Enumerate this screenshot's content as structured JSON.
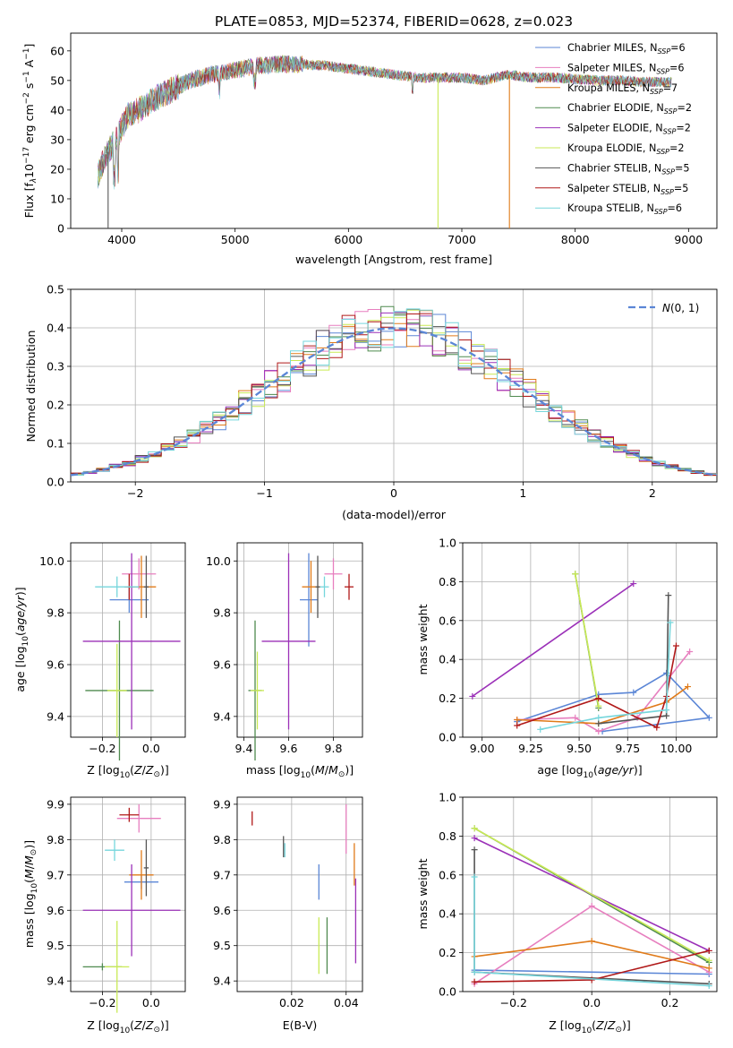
{
  "figure": {
    "title": "PLATE=0853, MJD=52374, FIBERID=0628, z=0.023",
    "colors": {
      "chabrier_miles": "#5b86d6",
      "salpeter_miles": "#e77fbf",
      "kroupa_miles": "#e07b1a",
      "chabrier_elodie": "#4f8a4f",
      "salpeter_elodie": "#9b30b8",
      "kroupa_elodie": "#c9ea55",
      "chabrier_stelib": "#555555",
      "salpeter_stelib": "#b01818",
      "kroupa_stelib": "#76d6dc"
    }
  },
  "chart_data": [
    {
      "id": "spectrum",
      "type": "line",
      "xlabel": "wavelength [Angstrom, rest frame]",
      "ylabel": "Flux [f_λ10^-17 erg cm^-2 s^-1 A^-1]",
      "xlim": [
        3550,
        9250
      ],
      "ylim": [
        0,
        66
      ],
      "xticks": [
        "4000",
        "5000",
        "6000",
        "7000",
        "8000",
        "9000"
      ],
      "yticks": [
        "0",
        "10",
        "20",
        "30",
        "40",
        "50",
        "60"
      ],
      "grid": false,
      "legend_position": "top-right",
      "legend": [
        {
          "label": "Chabrier MILES, N",
          "sub": "SSP",
          "suffix": "=6",
          "color_key": "chabrier_miles"
        },
        {
          "label": "Salpeter MILES, N",
          "sub": "SSP",
          "suffix": "=6",
          "color_key": "salpeter_miles"
        },
        {
          "label": "Kroupa MILES, N",
          "sub": "SSP",
          "suffix": "=7",
          "color_key": "kroupa_miles"
        },
        {
          "label": "Chabrier ELODIE, N",
          "sub": "SSP",
          "suffix": "=2",
          "color_key": "chabrier_elodie"
        },
        {
          "label": "Salpeter ELODIE, N",
          "sub": "SSP",
          "suffix": "=2",
          "color_key": "salpeter_elodie"
        },
        {
          "label": "Kroupa ELODIE, N",
          "sub": "SSP",
          "suffix": "=2",
          "color_key": "kroupa_elodie"
        },
        {
          "label": "Chabrier STELIB, N",
          "sub": "SSP",
          "suffix": "=5",
          "color_key": "chabrier_stelib"
        },
        {
          "label": "Salpeter STELIB, N",
          "sub": "SSP",
          "suffix": "=5",
          "color_key": "salpeter_stelib"
        },
        {
          "label": "Kroupa STELIB, N",
          "sub": "SSP",
          "suffix": "=6",
          "color_key": "kroupa_stelib"
        }
      ],
      "continuum": [
        [
          3790,
          18
        ],
        [
          3850,
          24
        ],
        [
          3950,
          30
        ],
        [
          4050,
          38
        ],
        [
          4150,
          40
        ],
        [
          4300,
          44
        ],
        [
          4450,
          47
        ],
        [
          4600,
          50
        ],
        [
          4800,
          52
        ],
        [
          5000,
          53.5
        ],
        [
          5200,
          55
        ],
        [
          5400,
          55.5
        ],
        [
          5600,
          55.5
        ],
        [
          5800,
          55
        ],
        [
          6000,
          54
        ],
        [
          6200,
          53
        ],
        [
          6400,
          52
        ],
        [
          6600,
          51
        ],
        [
          6800,
          51
        ],
        [
          7000,
          51
        ],
        [
          7200,
          50
        ],
        [
          7400,
          52
        ],
        [
          7600,
          51
        ],
        [
          7800,
          51
        ],
        [
          8000,
          50.5
        ],
        [
          8200,
          50
        ],
        [
          8400,
          50
        ],
        [
          8600,
          49.5
        ],
        [
          8800,
          49.5
        ]
      ],
      "dropouts": [
        {
          "x": 3880,
          "y": 0,
          "color_key": "chabrier_stelib"
        },
        {
          "x": 6790,
          "y": 0,
          "color_key": "kroupa_elodie"
        },
        {
          "x": 7420,
          "y": 0,
          "color_key": "kroupa_miles"
        }
      ]
    },
    {
      "id": "residuals",
      "type": "line",
      "xlabel": "(data-model)/error",
      "ylabel": "Normed distribution",
      "xlim": [
        -2.5,
        2.5
      ],
      "ylim": [
        0,
        0.5
      ],
      "xticks": [
        "−2",
        "−1",
        "0",
        "1",
        "2"
      ],
      "yticks": [
        "0.0",
        "0.1",
        "0.2",
        "0.3",
        "0.4",
        "0.5"
      ],
      "grid": true,
      "legend_position": "top-right",
      "legend_label": "N(0,1)",
      "bin_width": 0.1
    },
    {
      "id": "age_vs_Z",
      "type": "scatter",
      "xlabel": "Z [log10(Z/Z⊙)]",
      "ylabel": "age  [log10(age/yr)]",
      "xlim": [
        -0.33,
        0.14
      ],
      "ylim": [
        9.32,
        10.07
      ],
      "xticks": [
        "−0.2",
        "0.0"
      ],
      "yticks": [
        "9.4",
        "9.6",
        "9.8",
        "10.0"
      ],
      "grid": true,
      "points": [
        {
          "x": -0.09,
          "y": 9.85,
          "xerr": 0.08,
          "yerr": 0.05,
          "color_key": "chabrier_miles"
        },
        {
          "x": -0.05,
          "y": 9.95,
          "xerr": 0.07,
          "yerr": 0.06,
          "color_key": "salpeter_miles"
        },
        {
          "x": -0.04,
          "y": 9.9,
          "xerr": 0.06,
          "yerr": 0.12,
          "color_key": "kroupa_miles"
        },
        {
          "x": -0.13,
          "y": 9.5,
          "xerr": 0.14,
          "yerr": 0.27,
          "color_key": "chabrier_elodie"
        },
        {
          "x": -0.08,
          "y": 9.69,
          "xerr": 0.2,
          "yerr": 0.34,
          "color_key": "salpeter_elodie"
        },
        {
          "x": -0.14,
          "y": 9.5,
          "xerr": 0.04,
          "yerr": 0.18,
          "color_key": "kroupa_elodie"
        },
        {
          "x": -0.02,
          "y": 9.9,
          "xerr": 0.01,
          "yerr": 0.12,
          "color_key": "chabrier_stelib"
        },
        {
          "x": -0.09,
          "y": 9.9,
          "xerr": 0.02,
          "yerr": 0.05,
          "color_key": "salpeter_stelib"
        },
        {
          "x": -0.14,
          "y": 9.9,
          "xerr": 0.09,
          "yerr": 0.04,
          "color_key": "kroupa_stelib"
        }
      ]
    },
    {
      "id": "age_vs_mass",
      "type": "scatter",
      "xlabel": "mass [log10(M/M⊙)]",
      "ylabel": "",
      "xlim": [
        9.37,
        9.93
      ],
      "ylim": [
        9.32,
        10.07
      ],
      "xticks": [
        "9.4",
        "9.6",
        "9.8"
      ],
      "yticks": [
        "9.4",
        "9.6",
        "9.8",
        "10.0"
      ],
      "grid": true,
      "points": [
        {
          "x": 9.69,
          "y": 9.85,
          "xerr": 0.04,
          "yerr": 0.18,
          "color_key": "chabrier_miles"
        },
        {
          "x": 9.8,
          "y": 9.95,
          "xerr": 0.04,
          "yerr": 0.06,
          "color_key": "salpeter_miles"
        },
        {
          "x": 9.7,
          "y": 9.9,
          "xerr": 0.04,
          "yerr": 0.1,
          "color_key": "kroupa_miles"
        },
        {
          "x": 9.45,
          "y": 9.5,
          "xerr": 0.03,
          "yerr": 0.27,
          "color_key": "chabrier_elodie"
        },
        {
          "x": 9.6,
          "y": 9.69,
          "xerr": 0.12,
          "yerr": 0.34,
          "color_key": "salpeter_elodie"
        },
        {
          "x": 9.46,
          "y": 9.5,
          "xerr": 0.03,
          "yerr": 0.15,
          "color_key": "kroupa_elodie"
        },
        {
          "x": 9.73,
          "y": 9.9,
          "xerr": 0.01,
          "yerr": 0.12,
          "color_key": "chabrier_stelib"
        },
        {
          "x": 9.87,
          "y": 9.9,
          "xerr": 0.02,
          "yerr": 0.05,
          "color_key": "salpeter_stelib"
        },
        {
          "x": 9.76,
          "y": 9.9,
          "xerr": 0.02,
          "yerr": 0.04,
          "color_key": "kroupa_stelib"
        }
      ]
    },
    {
      "id": "weight_vs_age",
      "type": "line",
      "xlabel": "age  [log10(age/yr)]",
      "ylabel": "mass weight",
      "xlim": [
        8.9,
        10.21
      ],
      "ylim": [
        0,
        1.0
      ],
      "xticks": [
        "9.00",
        "9.25",
        "9.50",
        "9.75",
        "10.00"
      ],
      "yticks": [
        "0.0",
        "0.2",
        "0.4",
        "0.6",
        "0.8",
        "1.0"
      ],
      "grid": true,
      "series": [
        {
          "color_key": "chabrier_miles",
          "points": [
            [
              9.18,
              0.08
            ],
            [
              9.6,
              0.22
            ],
            [
              9.78,
              0.23
            ],
            [
              9.95,
              0.33
            ],
            [
              10.17,
              0.1
            ],
            [
              9.62,
              0.03
            ]
          ]
        },
        {
          "color_key": "salpeter_miles",
          "points": [
            [
              9.18,
              0.09
            ],
            [
              9.48,
              0.1
            ],
            [
              9.6,
              0.03
            ],
            [
              9.8,
              0.1
            ],
            [
              10.07,
              0.44
            ]
          ]
        },
        {
          "color_key": "kroupa_miles",
          "points": [
            [
              9.18,
              0.09
            ],
            [
              9.6,
              0.07
            ],
            [
              9.95,
              0.18
            ],
            [
              10.06,
              0.26
            ]
          ]
        },
        {
          "color_key": "chabrier_elodie",
          "points": [
            [
              9.48,
              0.84
            ],
            [
              9.6,
              0.15
            ]
          ]
        },
        {
          "color_key": "salpeter_elodie",
          "points": [
            [
              8.95,
              0.21
            ],
            [
              9.78,
              0.79
            ]
          ]
        },
        {
          "color_key": "kroupa_elodie",
          "points": [
            [
              9.48,
              0.84
            ],
            [
              9.6,
              0.16
            ]
          ]
        },
        {
          "color_key": "chabrier_stelib",
          "points": [
            [
              9.6,
              0.07
            ],
            [
              9.95,
              0.11
            ],
            [
              9.96,
              0.73
            ]
          ]
        },
        {
          "color_key": "salpeter_stelib",
          "points": [
            [
              9.18,
              0.06
            ],
            [
              9.6,
              0.2
            ],
            [
              9.9,
              0.05
            ],
            [
              9.95,
              0.21
            ],
            [
              10.0,
              0.47
            ]
          ]
        },
        {
          "color_key": "kroupa_stelib",
          "points": [
            [
              9.3,
              0.04
            ],
            [
              9.6,
              0.1
            ],
            [
              9.95,
              0.14
            ],
            [
              9.97,
              0.59
            ]
          ]
        }
      ]
    },
    {
      "id": "mass_vs_Z",
      "type": "scatter",
      "xlabel": "Z [log10(Z/Z⊙)]",
      "ylabel": "mass [log10(M/M⊙)]",
      "xlim": [
        -0.33,
        0.14
      ],
      "ylim": [
        9.37,
        9.92
      ],
      "xticks": [
        "−0.2",
        "0.0"
      ],
      "yticks": [
        "9.4",
        "9.5",
        "9.6",
        "9.7",
        "9.8",
        "9.9"
      ],
      "grid": true,
      "points": [
        {
          "x": -0.04,
          "y": 9.68,
          "xerr": 0.07,
          "yerr": 0.02,
          "color_key": "chabrier_miles"
        },
        {
          "x": -0.05,
          "y": 9.86,
          "xerr": 0.09,
          "yerr": 0.04,
          "color_key": "salpeter_miles"
        },
        {
          "x": -0.04,
          "y": 9.7,
          "xerr": 0.05,
          "yerr": 0.07,
          "color_key": "kroupa_miles"
        },
        {
          "x": -0.2,
          "y": 9.44,
          "xerr": 0.08,
          "yerr": 0.01,
          "color_key": "chabrier_elodie"
        },
        {
          "x": -0.08,
          "y": 9.6,
          "xerr": 0.2,
          "yerr": 0.13,
          "color_key": "salpeter_elodie"
        },
        {
          "x": -0.14,
          "y": 9.44,
          "xerr": 0.05,
          "yerr": 0.13,
          "color_key": "kroupa_elodie"
        },
        {
          "x": -0.02,
          "y": 9.72,
          "xerr": 0.01,
          "yerr": 0.08,
          "color_key": "chabrier_stelib"
        },
        {
          "x": -0.09,
          "y": 9.87,
          "xerr": 0.04,
          "yerr": 0.02,
          "color_key": "salpeter_stelib"
        },
        {
          "x": -0.15,
          "y": 9.77,
          "xerr": 0.04,
          "yerr": 0.03,
          "color_key": "kroupa_stelib"
        }
      ]
    },
    {
      "id": "mass_vs_ebv",
      "type": "scatter",
      "xlabel": "E(B-V)",
      "ylabel": "",
      "xlim": [
        0.0,
        0.046
      ],
      "ylim": [
        9.37,
        9.92
      ],
      "xticks": [
        "0.02",
        "0.04"
      ],
      "yticks": [
        "9.4",
        "9.5",
        "9.6",
        "9.7",
        "9.8",
        "9.9"
      ],
      "grid": true,
      "points": [
        {
          "x": 0.03,
          "y": 9.68,
          "xerr": 0.0,
          "yerr": 0.05,
          "color_key": "chabrier_miles"
        },
        {
          "x": 0.04,
          "y": 9.83,
          "xerr": 0.0,
          "yerr": 0.07,
          "color_key": "salpeter_miles"
        },
        {
          "x": 0.043,
          "y": 9.73,
          "xerr": 0.0,
          "yerr": 0.06,
          "color_key": "kroupa_miles"
        },
        {
          "x": 0.033,
          "y": 9.5,
          "xerr": 0.0,
          "yerr": 0.08,
          "color_key": "chabrier_elodie"
        },
        {
          "x": 0.0435,
          "y": 9.57,
          "xerr": 0.0,
          "yerr": 0.12,
          "color_key": "salpeter_elodie"
        },
        {
          "x": 0.03,
          "y": 9.5,
          "xerr": 0.0,
          "yerr": 0.08,
          "color_key": "kroupa_elodie"
        },
        {
          "x": 0.017,
          "y": 9.78,
          "xerr": 0.0,
          "yerr": 0.03,
          "color_key": "chabrier_stelib"
        },
        {
          "x": 0.0055,
          "y": 9.86,
          "xerr": 0.0,
          "yerr": 0.02,
          "color_key": "salpeter_stelib"
        },
        {
          "x": 0.0175,
          "y": 9.77,
          "xerr": 0.0,
          "yerr": 0.02,
          "color_key": "kroupa_stelib"
        }
      ]
    },
    {
      "id": "weight_vs_Z",
      "type": "line",
      "xlabel": "Z [log10(Z/Z⊙)]",
      "ylabel": "mass weight",
      "xlim": [
        -0.33,
        0.32
      ],
      "ylim": [
        0,
        1.0
      ],
      "xticks": [
        "−0.2",
        "0.0",
        "0.2"
      ],
      "yticks": [
        "0.0",
        "0.2",
        "0.4",
        "0.6",
        "0.8",
        "1.0"
      ],
      "grid": true,
      "series": [
        {
          "color_key": "chabrier_miles",
          "points": [
            [
              -0.3,
              0.11
            ],
            [
              0.3,
              0.09
            ]
          ]
        },
        {
          "color_key": "salpeter_miles",
          "points": [
            [
              -0.3,
              0.04
            ],
            [
              0.0,
              0.44
            ],
            [
              0.3,
              0.1
            ]
          ]
        },
        {
          "color_key": "kroupa_miles",
          "points": [
            [
              -0.3,
              0.18
            ],
            [
              0.0,
              0.26
            ],
            [
              0.3,
              0.12
            ]
          ]
        },
        {
          "color_key": "chabrier_elodie",
          "points": [
            [
              -0.3,
              0.84
            ],
            [
              0.3,
              0.15
            ]
          ]
        },
        {
          "color_key": "salpeter_elodie",
          "points": [
            [
              -0.3,
              0.79
            ],
            [
              0.3,
              0.21
            ]
          ]
        },
        {
          "color_key": "kroupa_elodie",
          "points": [
            [
              -0.3,
              0.84
            ],
            [
              0.3,
              0.16
            ]
          ]
        },
        {
          "color_key": "chabrier_stelib",
          "points": [
            [
              -0.3,
              0.73
            ],
            [
              -0.3,
              0.1
            ],
            [
              0.3,
              0.04
            ]
          ]
        },
        {
          "color_key": "salpeter_stelib",
          "points": [
            [
              -0.3,
              0.05
            ],
            [
              0.0,
              0.06
            ],
            [
              0.3,
              0.21
            ]
          ]
        },
        {
          "color_key": "kroupa_stelib",
          "points": [
            [
              -0.3,
              0.59
            ],
            [
              -0.3,
              0.1
            ],
            [
              0.3,
              0.03
            ]
          ]
        }
      ]
    }
  ]
}
